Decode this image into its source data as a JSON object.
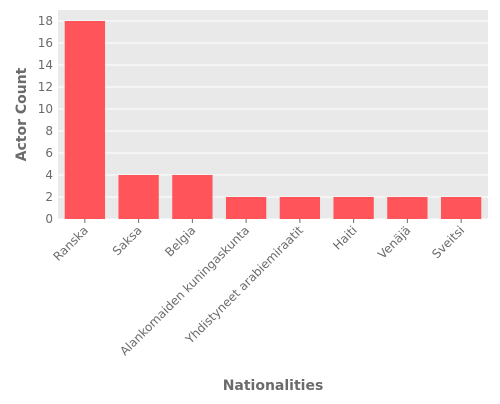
{
  "chart_data": {
    "type": "bar",
    "title": "",
    "xlabel": "Nationalities",
    "ylabel": "Actor Count",
    "categories": [
      "Ranska",
      "Saksa",
      "Belgia",
      "Alankomaiden kuningaskunta",
      "Yhdistyneet arabiemiraatit",
      "Haiti",
      "Venäjä",
      "Sveitsi"
    ],
    "values": [
      18,
      4,
      4,
      2,
      2,
      2,
      2,
      2
    ],
    "ylim": [
      0,
      19
    ],
    "yticks": [
      0,
      2,
      4,
      6,
      8,
      10,
      12,
      14,
      16,
      18
    ],
    "grid": true,
    "bar_color": "#ff5459",
    "plot_background": "#e9e9e9",
    "grid_color": "#ffffff",
    "text_color": "#6b6b6b"
  }
}
